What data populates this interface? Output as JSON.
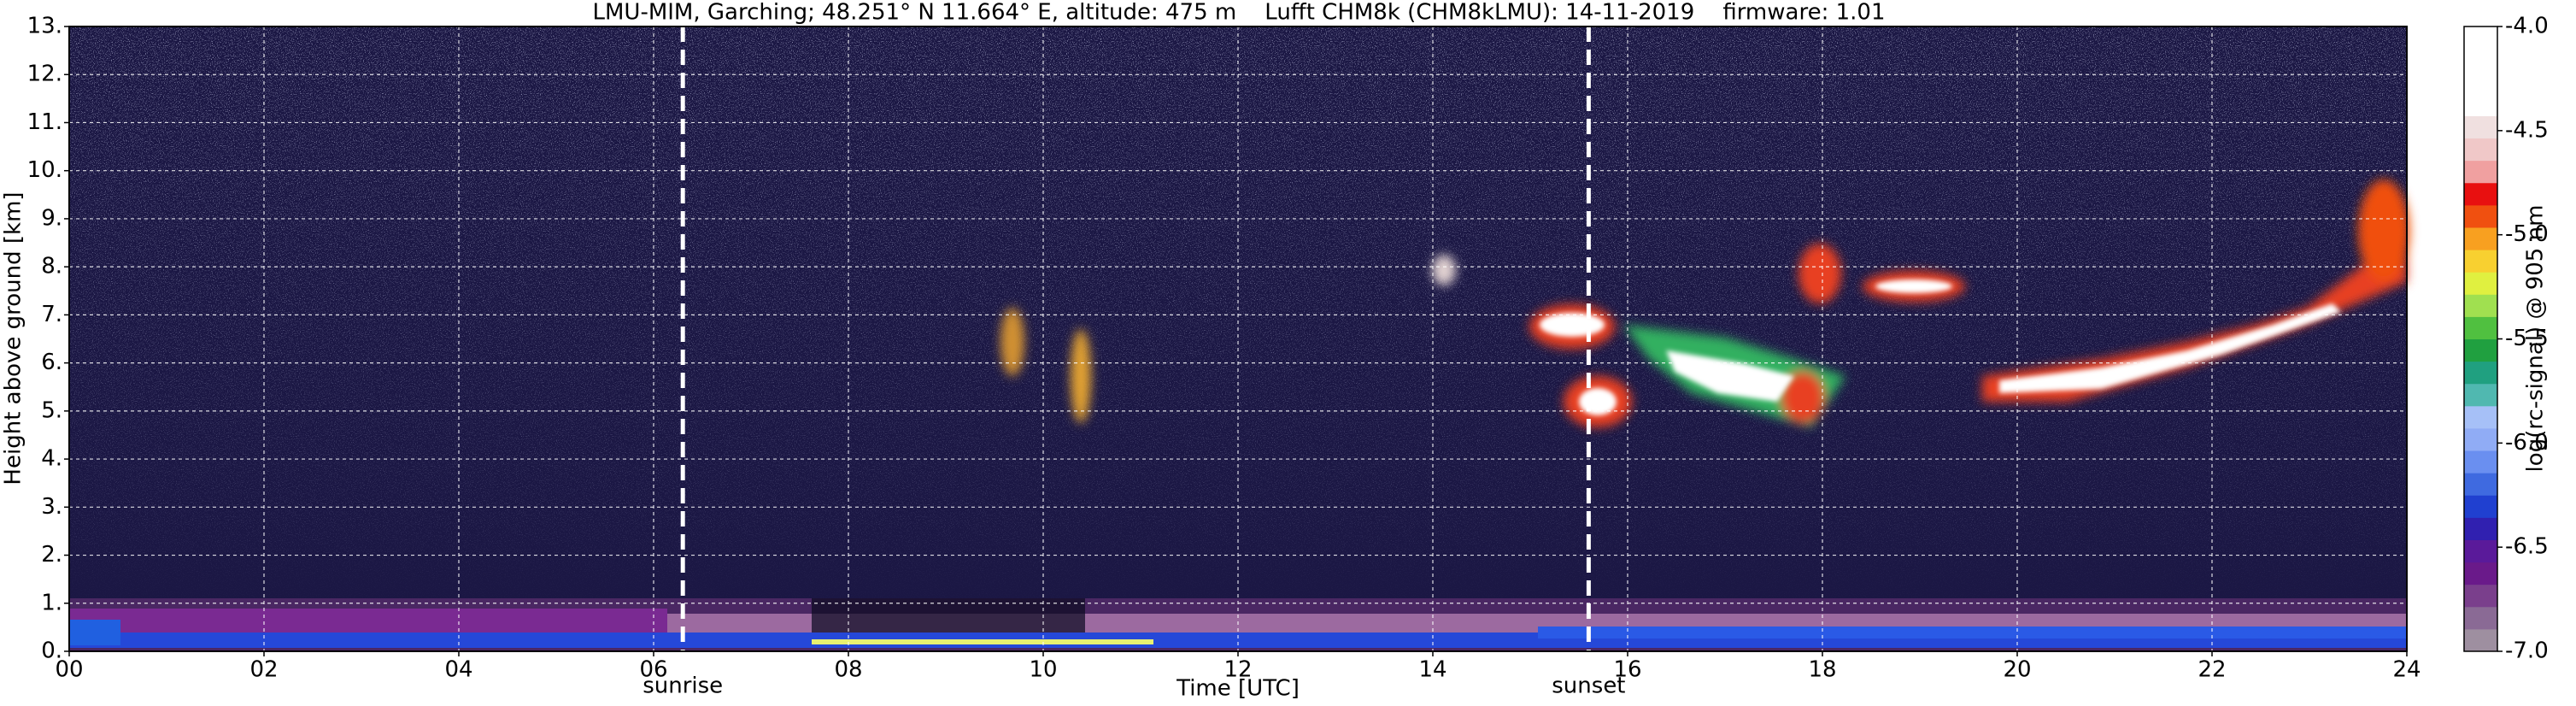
{
  "chart_data": {
    "type": "heatmap",
    "title": "LMU-MIM, Garching; 48.251° N 11.664° E, altitude: 475 m    Lufft CHM8k (CHM8kLMU): 14-11-2019    firmware: 1.01",
    "xlabel": "Time [UTC]",
    "ylabel": "Height above ground [km]",
    "xlim": [
      0,
      24
    ],
    "xticks": [
      {
        "value": 0,
        "label": "00"
      },
      {
        "value": 2,
        "label": "02"
      },
      {
        "value": 4,
        "label": "04"
      },
      {
        "value": 6,
        "label": "06"
      },
      {
        "value": 8,
        "label": "08"
      },
      {
        "value": 10,
        "label": "10"
      },
      {
        "value": 12,
        "label": "12"
      },
      {
        "value": 14,
        "label": "14"
      },
      {
        "value": 16,
        "label": "16"
      },
      {
        "value": 18,
        "label": "18"
      },
      {
        "value": 20,
        "label": "20"
      },
      {
        "value": 22,
        "label": "22"
      },
      {
        "value": 24,
        "label": "24"
      }
    ],
    "ylim": [
      0,
      13
    ],
    "yticks": [
      {
        "value": 0,
        "label": "0."
      },
      {
        "value": 1,
        "label": "1."
      },
      {
        "value": 2,
        "label": "2."
      },
      {
        "value": 3,
        "label": "3."
      },
      {
        "value": 4,
        "label": "4."
      },
      {
        "value": 5,
        "label": "5."
      },
      {
        "value": 6,
        "label": "6."
      },
      {
        "value": 7,
        "label": "7."
      },
      {
        "value": 8,
        "label": "8."
      },
      {
        "value": 9,
        "label": "9."
      },
      {
        "value": 10,
        "label": "10."
      },
      {
        "value": 11,
        "label": "11."
      },
      {
        "value": 12,
        "label": "12."
      },
      {
        "value": 13,
        "label": "13."
      }
    ],
    "grid": true,
    "annotations": [
      {
        "x": 6.3,
        "label": "sunrise"
      },
      {
        "x": 15.6,
        "label": "sunset"
      }
    ],
    "colorbar": {
      "label": "log(rc-signal) @ 905 nm",
      "lim": [
        -7,
        -4
      ],
      "ticks": [
        {
          "value": -4,
          "label": "-4.0"
        },
        {
          "value": -4.5,
          "label": "-4.5"
        },
        {
          "value": -5,
          "label": "-5.0"
        },
        {
          "value": -5.5,
          "label": "-5.5"
        },
        {
          "value": -6,
          "label": "-6.0"
        },
        {
          "value": -6.5,
          "label": "-6.5"
        },
        {
          "value": -7,
          "label": "-7.0"
        }
      ],
      "colors": [
        "#9e8fa0",
        "#8a6a95",
        "#7a3f8c",
        "#6a1a8a",
        "#5a1a9a",
        "#3020b0",
        "#2040d0",
        "#3f6ae0",
        "#6a8ff0",
        "#90acf5",
        "#a6c0f7",
        "#50b8b0",
        "#20a080",
        "#20a040",
        "#50c040",
        "#a0e050",
        "#e0f040",
        "#f8d030",
        "#f8a020",
        "#f05010",
        "#e81010",
        "#f0a0a0",
        "#f0c8c8",
        "#f0e0e0",
        "#ffffff",
        "#ffffff",
        "#ffffff",
        "#ffffff"
      ]
    }
  }
}
